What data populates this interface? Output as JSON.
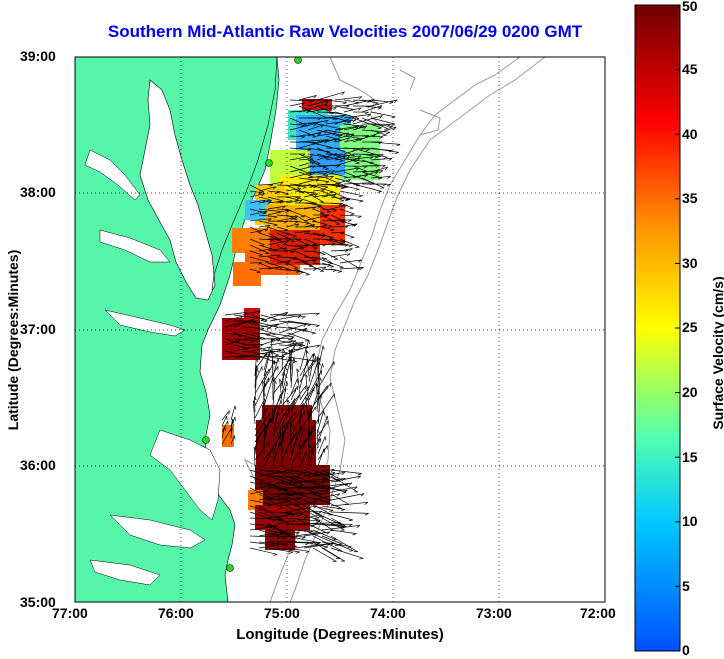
{
  "title": "Southern Mid-Atlantic Raw Velocities 2007/06/29 0200 GMT",
  "x_axis": {
    "label": "Longitude (Degrees:Minutes)",
    "ticks": [
      "77:00",
      "76:00",
      "75:00",
      "74:00",
      "73:00",
      "72:00"
    ]
  },
  "y_axis": {
    "label": "Latitude (Degrees:Minutes)",
    "ticks": [
      "39:00",
      "38:00",
      "37:00",
      "36:00",
      "35:00"
    ]
  },
  "colorbar": {
    "label": "Surface Velocity (cm/s)",
    "ticks": [
      "0",
      "5",
      "10",
      "15",
      "20",
      "25",
      "30",
      "35",
      "40",
      "45",
      "50"
    ],
    "min": 0,
    "max": 50,
    "colors": [
      "#0050ff",
      "#00c8ff",
      "#50ffb0",
      "#ffff00",
      "#ff9000",
      "#ff0000",
      "#700000"
    ]
  },
  "colors": {
    "land": "#55f5aa",
    "water": "#ffffff",
    "title": "#0000ee",
    "bathymetry": "#999999",
    "stations": "#22dd22"
  },
  "map": {
    "lon_range": [
      "77:00",
      "72:00"
    ],
    "lat_range": [
      "35:00",
      "39:00"
    ],
    "grid": true
  }
}
